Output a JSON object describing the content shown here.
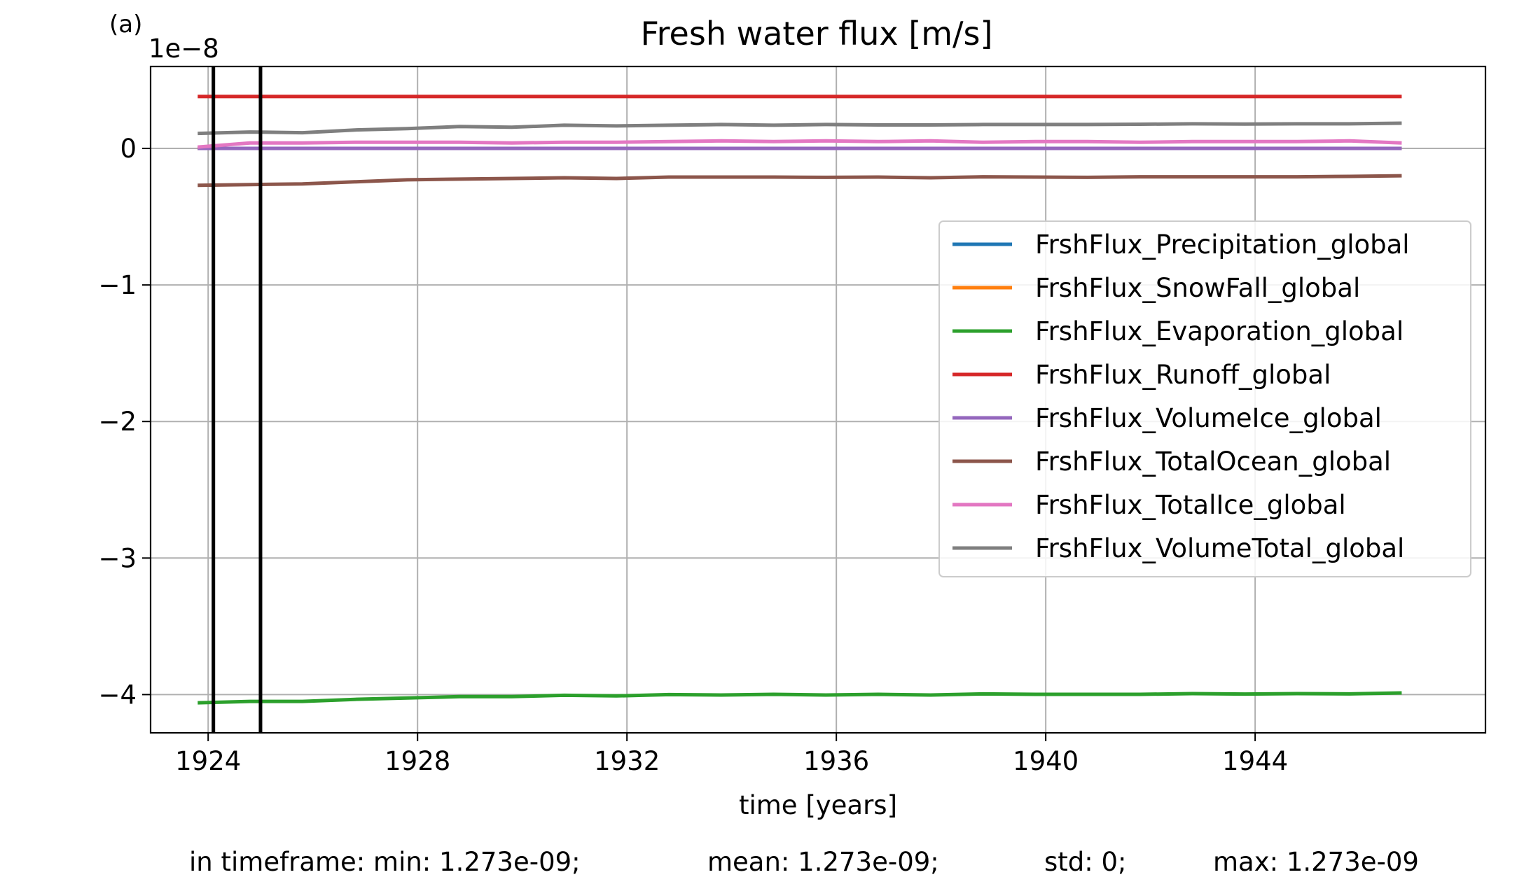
{
  "panel_label": "(a)",
  "footer": {
    "min": "in timeframe: min: 1.273e-09;",
    "mean": "mean: 1.273e-09;",
    "std": "std: 0;",
    "max": "max: 1.273e-09"
  },
  "chart_data": {
    "type": "line",
    "title": "Fresh water flux [m/s]",
    "xlabel": "time [years]",
    "ylabel": "",
    "y_scale_label": "1e−8",
    "xlim": [
      1922.9,
      1948.4
    ],
    "ylim": [
      -4.28,
      0.6
    ],
    "xticks": [
      1924,
      1928,
      1932,
      1936,
      1940,
      1944
    ],
    "xtick_labels": [
      "1924",
      "1928",
      "1932",
      "1936",
      "1940",
      "1944"
    ],
    "yticks": [
      0,
      -1,
      -2,
      -3,
      -4
    ],
    "ytick_labels": [
      "0",
      "−1",
      "−2",
      "−3",
      "−4"
    ],
    "grid": true,
    "legend_position": "center-right",
    "vertical_markers": [
      1924.1,
      1925.0
    ],
    "x": [
      1923.8,
      1924.8,
      1925.8,
      1926.8,
      1927.8,
      1928.8,
      1929.8,
      1930.8,
      1931.8,
      1932.8,
      1933.8,
      1934.8,
      1935.8,
      1936.8,
      1937.8,
      1938.8,
      1939.8,
      1940.8,
      1941.8,
      1942.8,
      1943.8,
      1944.8,
      1945.8,
      1946.8
    ],
    "series": [
      {
        "name": "FrshFlux_Precipitation_global",
        "color": "#1f77b4",
        "values": [
          0.0,
          0.0,
          0.0,
          0.0,
          0.0,
          0.0,
          0.0,
          0.0,
          0.0,
          0.0,
          0.0,
          0.0,
          0.0,
          0.0,
          0.0,
          0.0,
          0.0,
          0.0,
          0.0,
          0.0,
          0.0,
          0.0,
          0.0,
          0.0
        ]
      },
      {
        "name": "FrshFlux_SnowFall_global",
        "color": "#ff7f0e",
        "values": [
          0.0,
          0.0,
          0.0,
          0.0,
          0.0,
          0.0,
          0.0,
          0.0,
          0.0,
          0.0,
          0.0,
          0.0,
          0.0,
          0.0,
          0.0,
          0.0,
          0.0,
          0.0,
          0.0,
          0.0,
          0.0,
          0.0,
          0.0,
          0.0
        ]
      },
      {
        "name": "FrshFlux_Evaporation_global",
        "color": "#2ca02c",
        "values": [
          -4.06,
          -4.05,
          -4.05,
          -4.035,
          -4.025,
          -4.015,
          -4.015,
          -4.005,
          -4.01,
          -4.0,
          -4.003,
          -3.998,
          -4.003,
          -3.998,
          -4.003,
          -3.995,
          -3.998,
          -3.998,
          -3.998,
          -3.993,
          -3.996,
          -3.993,
          -3.995,
          -3.988
        ]
      },
      {
        "name": "FrshFlux_Runoff_global",
        "color": "#d62728",
        "values": [
          0.38,
          0.38,
          0.38,
          0.38,
          0.38,
          0.38,
          0.38,
          0.38,
          0.38,
          0.38,
          0.38,
          0.38,
          0.38,
          0.38,
          0.38,
          0.38,
          0.38,
          0.38,
          0.38,
          0.38,
          0.38,
          0.38,
          0.38,
          0.38
        ]
      },
      {
        "name": "FrshFlux_VolumeIce_global",
        "color": "#9467bd",
        "values": [
          0.0,
          0.0,
          0.0,
          0.0,
          0.0,
          0.0,
          0.0,
          0.0,
          0.0,
          0.0,
          0.0,
          0.0,
          0.0,
          0.0,
          0.0,
          0.0,
          0.0,
          0.0,
          0.0,
          0.0,
          0.0,
          0.0,
          0.0,
          0.0
        ]
      },
      {
        "name": "FrshFlux_TotalOcean_global",
        "color": "#8c564b",
        "values": [
          -0.27,
          -0.265,
          -0.26,
          -0.245,
          -0.23,
          -0.225,
          -0.22,
          -0.215,
          -0.22,
          -0.21,
          -0.21,
          -0.21,
          -0.212,
          -0.21,
          -0.215,
          -0.208,
          -0.21,
          -0.212,
          -0.208,
          -0.208,
          -0.208,
          -0.208,
          -0.205,
          -0.2
        ]
      },
      {
        "name": "FrshFlux_TotalIce_global",
        "color": "#e377c2",
        "values": [
          0.01,
          0.04,
          0.04,
          0.045,
          0.045,
          0.045,
          0.04,
          0.045,
          0.045,
          0.05,
          0.055,
          0.05,
          0.055,
          0.05,
          0.055,
          0.045,
          0.05,
          0.05,
          0.045,
          0.05,
          0.05,
          0.05,
          0.055,
          0.04
        ]
      },
      {
        "name": "FrshFlux_VolumeTotal_global",
        "color": "#7f7f7f",
        "values": [
          0.11,
          0.12,
          0.115,
          0.135,
          0.145,
          0.16,
          0.155,
          0.17,
          0.165,
          0.17,
          0.175,
          0.17,
          0.175,
          0.172,
          0.172,
          0.175,
          0.175,
          0.175,
          0.177,
          0.18,
          0.178,
          0.18,
          0.18,
          0.185
        ]
      }
    ]
  }
}
